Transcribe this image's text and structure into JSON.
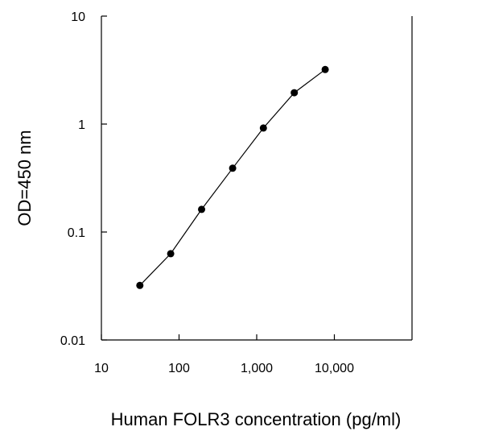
{
  "chart_data": {
    "type": "line",
    "title": "",
    "xlabel": "Human FOLR3 concentration (pg/ml)",
    "ylabel": "OD=450 nm",
    "x_scale": "log",
    "y_scale": "log",
    "xlim": [
      10,
      100000
    ],
    "ylim": [
      0.01,
      10
    ],
    "x_ticks": [
      {
        "value": 10,
        "label": "10"
      },
      {
        "value": 100,
        "label": "100"
      },
      {
        "value": 1000,
        "label": "1,000"
      },
      {
        "value": 10000,
        "label": "10,000"
      }
    ],
    "y_ticks": [
      {
        "value": 10,
        "label": "10"
      },
      {
        "value": 1,
        "label": "1"
      },
      {
        "value": 0.1,
        "label": "0.1"
      },
      {
        "value": 0.01,
        "label": "0.01"
      }
    ],
    "grid": false,
    "series": [
      {
        "x": [
          31.25,
          78,
          195,
          490,
          1220,
          3050,
          7620
        ],
        "y": [
          0.032,
          0.063,
          0.162,
          0.39,
          0.92,
          1.95,
          3.2
        ]
      }
    ],
    "colors": {
      "line": "#000000",
      "marker": "#000000",
      "axis": "#000000"
    }
  }
}
